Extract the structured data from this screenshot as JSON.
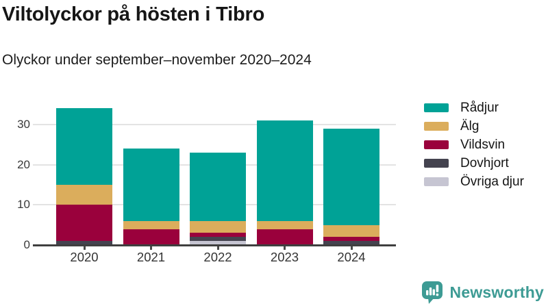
{
  "title": "Viltolyckor på hösten i Tibro",
  "subtitle": "Olyckor under september–november 2020–2024",
  "chart_data": {
    "type": "bar",
    "stacked": true,
    "categories": [
      "2020",
      "2021",
      "2022",
      "2023",
      "2024"
    ],
    "series": [
      {
        "name": "Rådjur",
        "color": "#00a296",
        "values": [
          19,
          18,
          17,
          25,
          24
        ]
      },
      {
        "name": "Älg",
        "color": "#dbad5c",
        "values": [
          5,
          2,
          3,
          2,
          3
        ]
      },
      {
        "name": "Vildsvin",
        "color": "#9a013c",
        "values": [
          9,
          4,
          1,
          4,
          1
        ]
      },
      {
        "name": "Dovhjort",
        "color": "#44434f",
        "values": [
          1,
          0,
          1,
          0,
          1
        ]
      },
      {
        "name": "Övriga djur",
        "color": "#c6c5d2",
        "values": [
          0,
          0,
          1,
          0,
          0
        ]
      }
    ],
    "totals": [
      34,
      24,
      23,
      31,
      29
    ],
    "stack_order_bottom_to_top": [
      "Övriga djur",
      "Dovhjort",
      "Vildsvin",
      "Älg",
      "Rådjur"
    ],
    "title": "Viltolyckor på hösten i Tibro",
    "xlabel": "",
    "ylabel": "",
    "yticks": [
      0,
      10,
      20,
      30
    ],
    "ylim": [
      0,
      37
    ],
    "grid": "horizontal",
    "legend_position": "right"
  },
  "branding": {
    "logo_text": "Newsworthy",
    "logo_color": "#3d9b94",
    "logo_icon": "speech-bubble-bar-chart-icon"
  }
}
